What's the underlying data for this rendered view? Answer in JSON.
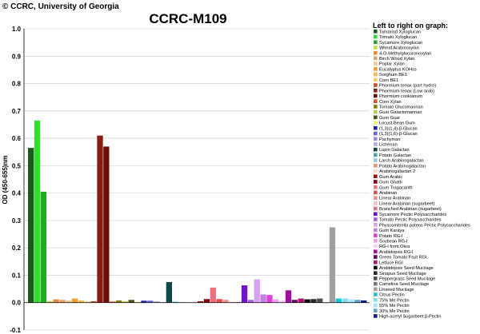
{
  "copyright": "© CCRC, University of Georgia",
  "chart_data": {
    "type": "bar",
    "title": "CCRC-M109",
    "ylabel": "OD (450-655)nm",
    "xlabel": "",
    "ylim": [
      -0.1,
      1.0
    ],
    "yticks": [
      "-0.1",
      "0.0",
      "0.1",
      "0.2",
      "0.3",
      "0.4",
      "0.5",
      "0.6",
      "0.7",
      "0.8",
      "0.9",
      "1.0"
    ],
    "grid": true,
    "legend_title": "Left to right on graph:",
    "legend_position": "right",
    "categories": [
      "Tamarind Xyloglucan",
      "Tomato Xyloglucan",
      "Sycamore Xyloglucan",
      "Wheat Arabinoxylan",
      "4-O-Methylglucuronoxylan",
      "Birch Wood Xylan",
      "Poplar Xylan",
      "Eucalyptus KOHss",
      "Sorghum BE1",
      "Corn BE1",
      "Phormium tenax (part hydro)",
      "Phormium tenax (Low arab)",
      "Phormium cookianum",
      "Corn Xylan",
      "Tomato Glucomannan",
      "Guar Galactomannan",
      "Gum Guar",
      "Locust Bean Gum",
      "(1,3)(1,4)-β-Glucan",
      "(1,3)(1,6)-β-Glucan",
      "Pachyman",
      "Lichenan",
      "Lupin Galactan",
      "Potato Galactan",
      "Larch Arabinogalactan",
      "Potato Arabinogalactan",
      "Arabinogalactan 2",
      "Gum Arabic",
      "Gum Ghatti",
      "Gum Tragacanth",
      "Arabinan",
      "Linear Arabinan",
      "Linear Arabinan (sugarbeet)",
      "Branched Arabinan (sugarbeet)",
      "Sycamore Pectic Polysaccharides",
      "Tomato Pectic Polysaccharides",
      "Physcomitrella patens Pectic Polysaccharides",
      "Gum Karaya",
      "Potato RG-I",
      "Soybean RG-I",
      "RG-I from Okra",
      "Arabidopsis RG-I",
      "Green Tomato Fruit RGI",
      "Lettuce RGI",
      "Arabidopsis Seed Mucilage",
      "Sinapus Seed Mucilage",
      "Peppergrass Seed Mucilage",
      "Camelina Seed Mucilage",
      "Linseed Mucilage",
      "Citrus Pectin",
      "75% Me Pectin",
      "55% Me Pectin",
      "30% Me Pectin",
      "High-acetyl Sugarbeet β-Pectin"
    ],
    "colors": [
      "#1a5c1a",
      "#33dd33",
      "#22aa22",
      "#c8d845",
      "#f08a3c",
      "#e0a070",
      "#f0c890",
      "#f0a030",
      "#f8b848",
      "#f8c870",
      "#c85020",
      "#8b1a10",
      "#6b1008",
      "#e05030",
      "#808000",
      "#b8c850",
      "#505018",
      "#f0f070",
      "#2020a0",
      "#6060e0",
      "#9090e0",
      "#a8b0e8",
      "#104848",
      "#40a8a8",
      "#90d0d0",
      "#f09070",
      "#f8d8c8",
      "#a81010",
      "#800010",
      "#f07080",
      "#e05050",
      "#f09090",
      "#f8c0c8",
      "#e07080",
      "#7010d0",
      "#a060e0",
      "#d8a0f0",
      "#c080e0",
      "#e040e0",
      "#f0a0f0",
      "#f8d0f8",
      "#a010a0",
      "#600060",
      "#b01070",
      "#000000",
      "#282828",
      "#505050",
      "#787878",
      "#a0a0a0",
      "#20c0e0",
      "#80e0f0",
      "#a0e8f8",
      "#60a0d0",
      "#102080"
    ],
    "values": [
      0.565,
      0.665,
      0.405,
      0.005,
      0.012,
      0.01,
      0.008,
      0.015,
      0.008,
      0.004,
      0.005,
      0.61,
      0.57,
      0.004,
      0.008,
      0.005,
      0.01,
      0.003,
      0.007,
      0.007,
      0.004,
      0.002,
      0.075,
      0.003,
      0.002,
      0.001,
      0.0,
      0.005,
      0.013,
      0.055,
      0.013,
      0.01,
      0.003,
      0.002,
      0.063,
      0.01,
      0.085,
      0.03,
      0.028,
      0.012,
      0.008,
      0.045,
      0.01,
      0.015,
      0.012,
      0.013,
      0.015,
      0.0,
      0.275,
      0.015,
      0.015,
      0.012,
      0.01,
      0.008
    ]
  }
}
